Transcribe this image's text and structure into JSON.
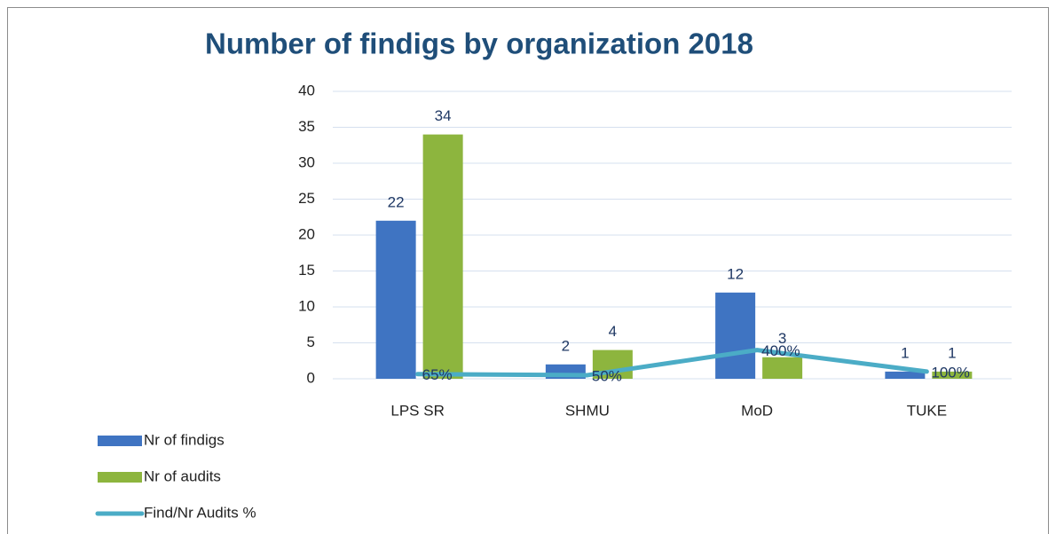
{
  "chart_data": {
    "type": "bar",
    "title": "Number of findigs by organization 2018",
    "categories": [
      "LPS SR",
      "SHMU",
      "MoD",
      "TUKE"
    ],
    "series": [
      {
        "name": "Nr of findigs",
        "color": "#3f74c2",
        "values": [
          22,
          2,
          12,
          1
        ]
      },
      {
        "name": "Nr of audits",
        "color": "#8db53e",
        "values": [
          34,
          4,
          3,
          1
        ]
      },
      {
        "name": "Find/Nr Audits %",
        "type": "line",
        "color": "#4bacc6",
        "values": [
          0.65,
          0.5,
          4,
          1
        ],
        "value_labels": [
          "65%",
          "50%",
          "400%",
          "100%"
        ]
      }
    ],
    "ylim": [
      0,
      40
    ],
    "yticks": [
      0,
      5,
      10,
      15,
      20,
      25,
      30,
      35,
      40
    ],
    "grid": true,
    "legend": "bottom-left"
  }
}
